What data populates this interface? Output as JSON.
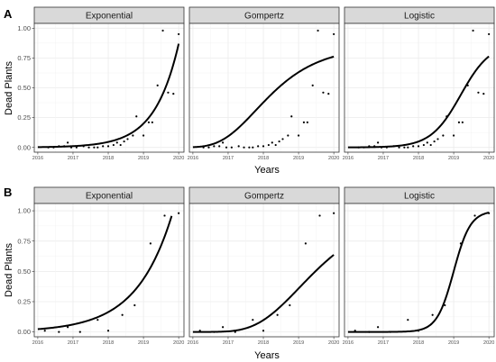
{
  "chart_data": {
    "type": "scatter",
    "rows": [
      {
        "tag": "A",
        "ylabel": "Dead Plants",
        "xlabel": "Years",
        "ylim": [
          -0.04,
          1.04
        ],
        "xlim": [
          2015.9,
          2020.15
        ],
        "yticks": [
          0.0,
          0.25,
          0.5,
          0.75,
          1.0
        ],
        "ytick_labels": [
          "0.00",
          "0.25",
          "0.50",
          "0.75",
          "1.00"
        ],
        "xticks": [
          2016,
          2017,
          2018,
          2019,
          2020
        ],
        "xtick_labels": [
          "2016",
          "2017",
          "2018",
          "2019",
          "2020"
        ],
        "points": {
          "x": [
            2016.3,
            2016.45,
            2016.6,
            2016.75,
            2016.85,
            2016.95,
            2017.1,
            2017.3,
            2017.45,
            2017.6,
            2017.7,
            2017.85,
            2018.0,
            2018.15,
            2018.25,
            2018.35,
            2018.45,
            2018.55,
            2018.7,
            2018.8,
            2019.0,
            2019.15,
            2019.25,
            2019.4,
            2019.55,
            2019.7,
            2019.85,
            2020.0
          ],
          "y": [
            0.0,
            0.0,
            0.01,
            0.01,
            0.04,
            0.0,
            0.0,
            0.01,
            0.0,
            0.0,
            0.0,
            0.01,
            0.01,
            0.02,
            0.04,
            0.02,
            0.05,
            0.07,
            0.1,
            0.26,
            0.1,
            0.21,
            0.21,
            0.52,
            0.98,
            0.46,
            0.45,
            0.95
          ]
        },
        "panels": [
          {
            "name": "Exponential",
            "curve": {
              "model": "exponential",
              "a": 0.00243,
              "b": 1.47,
              "x0": 2016.0
            }
          },
          {
            "name": "Gompertz",
            "curve": {
              "model": "gompertz",
              "A": 0.85,
              "b": 6.0,
              "c": 1.0,
              "x0": 2016.0
            }
          },
          {
            "name": "Logistic",
            "curve": {
              "model": "logistic",
              "A": 0.88,
              "r": 2.35,
              "x0": 2019.2
            }
          }
        ]
      },
      {
        "tag": "B",
        "ylabel": "Dead Plants",
        "xlabel": "Years",
        "ylim": [
          -0.04,
          1.06
        ],
        "xlim": [
          2015.9,
          2020.15
        ],
        "yticks": [
          0.0,
          0.25,
          0.5,
          0.75,
          1.0
        ],
        "ytick_labels": [
          "0.00",
          "0.25",
          "0.50",
          "0.75",
          "1.00"
        ],
        "xticks": [
          2016,
          2017,
          2018,
          2019,
          2020
        ],
        "xtick_labels": [
          "2016",
          "2017",
          "2018",
          "2019",
          "2020"
        ],
        "points": {
          "x": [
            2016.2,
            2016.6,
            2016.85,
            2017.2,
            2017.7,
            2018.0,
            2018.4,
            2018.75,
            2019.2,
            2019.6,
            2020.0
          ],
          "y": [
            0.01,
            0.0,
            0.04,
            0.0,
            0.1,
            0.01,
            0.14,
            0.22,
            0.73,
            0.96,
            0.98
          ]
        },
        "panels": [
          {
            "name": "Exponential",
            "curve": {
              "model": "exponential",
              "a": 0.0231,
              "b": 0.98,
              "x0": 2016.0,
              "xmax": 2019.8
            }
          },
          {
            "name": "Gompertz",
            "curve": {
              "model": "gompertz",
              "A": 1.0,
              "b": 12.0,
              "c": 0.82,
              "x0": 2016.0
            }
          },
          {
            "name": "Logistic",
            "curve": {
              "model": "logistic",
              "A": 1.0,
              "r": 4.2,
              "x0": 2019.0
            }
          }
        ]
      }
    ]
  }
}
